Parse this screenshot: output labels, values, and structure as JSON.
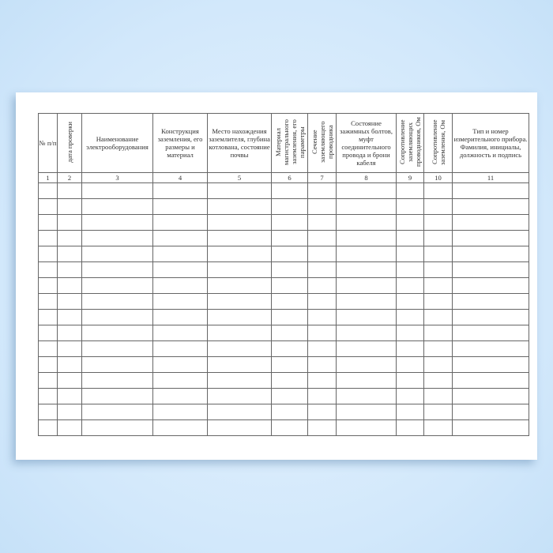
{
  "columns": [
    {
      "number": "1",
      "header": "№ п/п",
      "vertical": false
    },
    {
      "number": "2",
      "header": "дата проверки",
      "vertical": true
    },
    {
      "number": "3",
      "header": "Наименование электрооборудования",
      "vertical": false
    },
    {
      "number": "4",
      "header": "Конструкция заземления, его размеры и материал",
      "vertical": false
    },
    {
      "number": "5",
      "header": "Место нахождения заземлителя, глубина котлована, состояние почвы",
      "vertical": false
    },
    {
      "number": "6",
      "header": "Материал магистрального заземления, его параметры",
      "vertical": true
    },
    {
      "number": "7",
      "header": "Сечение заземляющего проводника",
      "vertical": true
    },
    {
      "number": "8",
      "header": "Состояние зажимных болтов, муфт соединительного провода и брони кабеля",
      "vertical": false
    },
    {
      "number": "9",
      "header": "Сопротивление заземляющих проводников, Ом",
      "vertical": true
    },
    {
      "number": "10",
      "header": "Сопротивление заземления, Ом",
      "vertical": true
    },
    {
      "number": "11",
      "header": "Тип и номер измерительного прибора. Фамилия, инициалы, должность и подпись",
      "vertical": false
    }
  ],
  "empty_rows": 16,
  "colors": {
    "background": "#d2e8fb",
    "paper": "#ffffff",
    "grid": "#666666"
  }
}
